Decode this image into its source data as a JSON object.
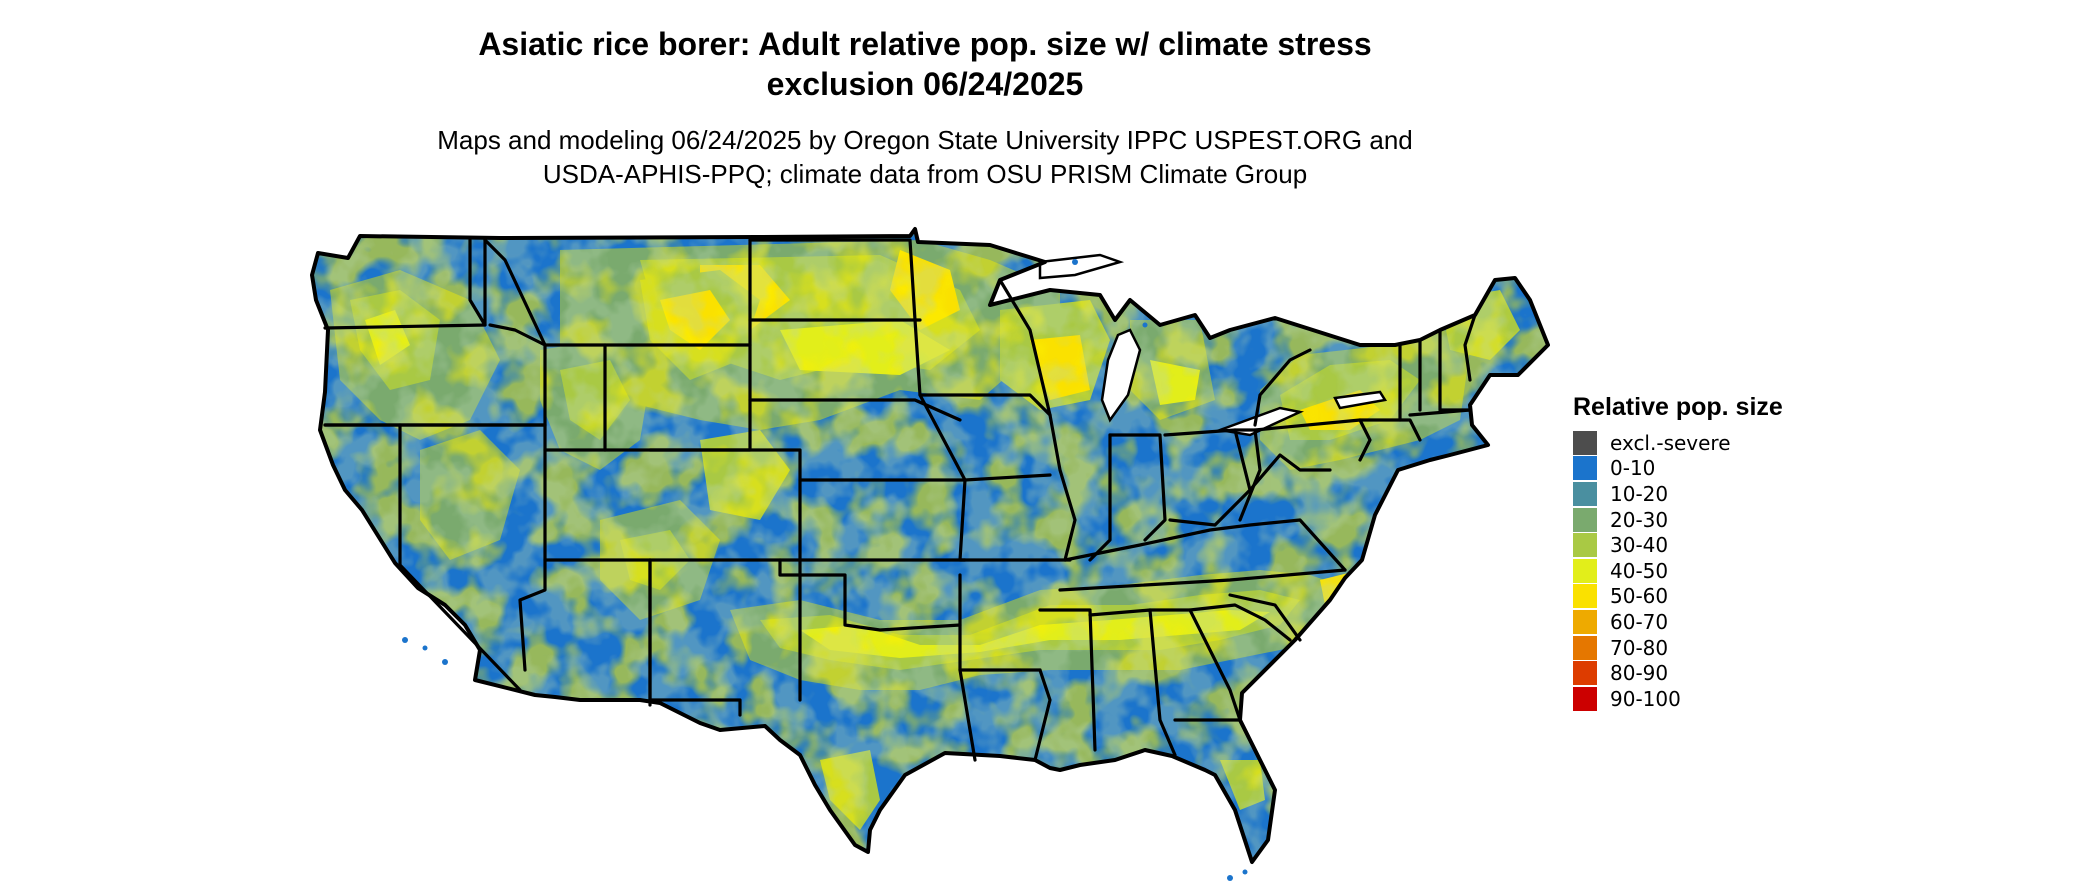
{
  "title_line1": "Asiatic rice borer: Adult relative pop. size w/ climate stress",
  "title_line2": "exclusion 06/24/2025",
  "subtitle_line1": "Maps and modeling 06/24/2025 by Oregon State University IPPC USPEST.ORG and",
  "subtitle_line2": "USDA-APHIS-PPQ; climate data from OSU PRISM Climate Group",
  "map": {
    "base_color": "#1b74cc",
    "border_color": "#000000"
  },
  "legend": {
    "title": "Relative pop. size",
    "items": [
      {
        "label": "excl.-severe",
        "color": "#4d4d4d"
      },
      {
        "label": "0-10",
        "color": "#1b74cc"
      },
      {
        "label": "10-20",
        "color": "#4a8fa0"
      },
      {
        "label": "20-30",
        "color": "#7aaa6e"
      },
      {
        "label": "30-40",
        "color": "#a9c944"
      },
      {
        "label": "40-50",
        "color": "#e2ee1a"
      },
      {
        "label": "50-60",
        "color": "#fae100"
      },
      {
        "label": "60-70",
        "color": "#eeaa00"
      },
      {
        "label": "70-80",
        "color": "#e57700"
      },
      {
        "label": "80-90",
        "color": "#dd3c00"
      },
      {
        "label": "90-100",
        "color": "#cc0000"
      }
    ]
  }
}
